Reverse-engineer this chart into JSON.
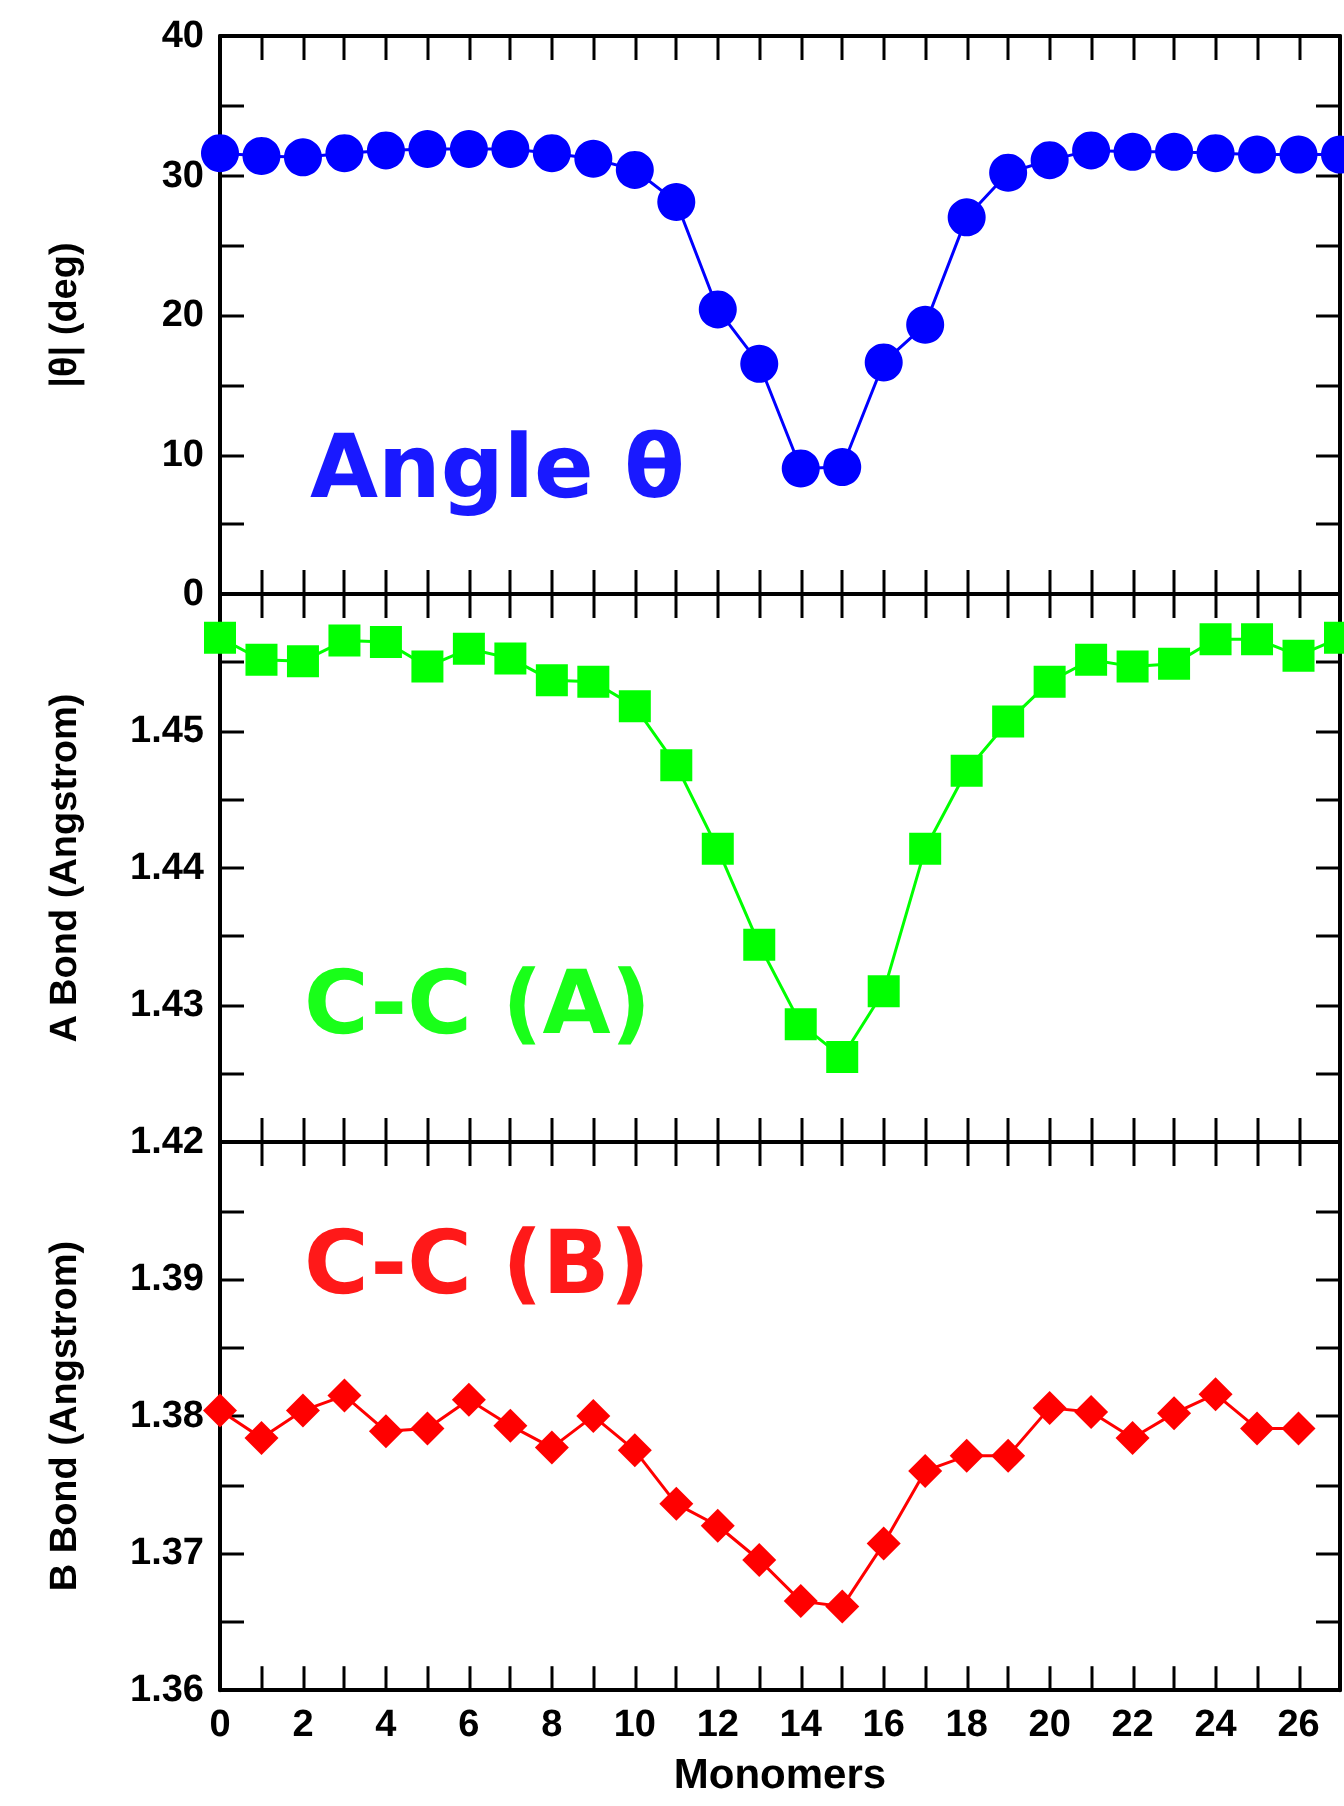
{
  "chart_data": [
    {
      "type": "line",
      "ylabel": "|θ| (deg)",
      "annotations": [
        "Angle θ"
      ],
      "x": [
        0,
        1,
        2,
        3,
        4,
        5,
        6,
        7,
        8,
        9,
        10,
        11,
        12,
        13,
        14,
        15,
        16,
        17,
        18,
        19,
        20,
        21,
        22,
        23,
        24,
        25,
        26,
        27
      ],
      "series": [
        {
          "color": "#0000ff",
          "values": [
            31.6,
            31.4,
            31.3,
            31.6,
            31.8,
            31.9,
            31.9,
            31.9,
            31.6,
            31.2,
            30.4,
            28.1,
            20.4,
            16.5,
            9.0,
            9.1,
            16.6,
            19.3,
            27.0,
            30.2,
            31.1,
            31.8,
            31.7,
            31.7,
            31.6,
            31.5,
            31.5,
            31.5
          ]
        }
      ],
      "marker": "circle",
      "xlim": [
        0,
        27
      ],
      "ylim": [
        0,
        40
      ],
      "tick_labels": "y",
      "xticks": [
        0,
        {
          "value": 1,
          "label": null
        },
        2,
        {
          "value": 3,
          "label": null
        },
        4,
        {
          "value": 5,
          "label": null
        },
        6,
        {
          "value": 7,
          "label": null
        },
        8,
        {
          "value": 9,
          "label": null
        },
        10,
        {
          "value": 11,
          "label": null
        },
        12,
        {
          "value": 13,
          "label": null
        },
        14,
        {
          "value": 15,
          "label": null
        },
        16,
        {
          "value": 17,
          "label": null
        },
        18,
        {
          "value": 19,
          "label": null
        },
        20,
        {
          "value": 21,
          "label": null
        },
        22,
        {
          "value": 23,
          "label": null
        },
        24,
        {
          "value": 25,
          "label": null
        },
        26
      ],
      "yticks": [
        0,
        {
          "value": 5,
          "label": null
        },
        10,
        {
          "value": 15,
          "label": null
        },
        20,
        {
          "value": 25,
          "label": null
        },
        30,
        {
          "value": 35,
          "label": null
        },
        40
      ]
    },
    {
      "type": "line",
      "ylabel": "A Bond (Angstrom)",
      "annotations": [
        "C-C (A)"
      ],
      "x": [
        0,
        1,
        2,
        3,
        4,
        5,
        6,
        7,
        8,
        9,
        10,
        11,
        12,
        13,
        14,
        15,
        16,
        17,
        18,
        19,
        20,
        21,
        22,
        23,
        24,
        25,
        26,
        27
      ],
      "series": [
        {
          "color": "#00ff00",
          "values": [
            1.4568,
            1.4552,
            1.4551,
            1.4566,
            1.4565,
            1.4547,
            1.456,
            1.4553,
            1.4537,
            1.4536,
            1.4518,
            1.4475,
            1.4414,
            1.4344,
            1.4286,
            1.4262,
            1.431,
            1.4414,
            1.4471,
            1.4507,
            1.4536,
            1.4552,
            1.4547,
            1.4549,
            1.4567,
            1.4567,
            1.4555,
            1.4568
          ]
        }
      ],
      "marker": "square",
      "xlim": [
        0,
        27
      ],
      "ylim": [
        1.42,
        1.46
      ],
      "tick_labels": "y",
      "xticks": [
        0,
        {
          "value": 1,
          "label": null
        },
        2,
        {
          "value": 3,
          "label": null
        },
        4,
        {
          "value": 5,
          "label": null
        },
        6,
        {
          "value": 7,
          "label": null
        },
        8,
        {
          "value": 9,
          "label": null
        },
        10,
        {
          "value": 11,
          "label": null
        },
        12,
        {
          "value": 13,
          "label": null
        },
        14,
        {
          "value": 15,
          "label": null
        },
        16,
        {
          "value": 17,
          "label": null
        },
        18,
        {
          "value": 19,
          "label": null
        },
        20,
        {
          "value": 21,
          "label": null
        },
        22,
        {
          "value": 23,
          "label": null
        },
        24,
        {
          "value": 25,
          "label": null
        },
        26
      ],
      "yticks": [
        1.42,
        {
          "value": 1.425,
          "label": null
        },
        1.43,
        {
          "value": 1.435,
          "label": null
        },
        1.44,
        {
          "value": 1.445,
          "label": null
        },
        1.45,
        {
          "value": 1.455,
          "label": null
        },
        {
          "value": 1.46,
          "label": null
        }
      ]
    },
    {
      "type": "line",
      "xlabel": "Monomers",
      "ylabel": "B Bond (Angstrom)",
      "annotations": [
        "C-C (B)"
      ],
      "x": [
        0,
        1,
        2,
        3,
        4,
        5,
        6,
        7,
        8,
        9,
        10,
        11,
        12,
        13,
        14,
        15,
        16,
        17,
        18,
        19,
        20,
        21,
        22,
        23,
        24,
        25,
        26
      ],
      "series": [
        {
          "color": "#ff0000",
          "values": [
            1.3804,
            1.3784,
            1.3804,
            1.3815,
            1.3789,
            1.3791,
            1.3812,
            1.3793,
            1.3777,
            1.38,
            1.3775,
            1.3736,
            1.372,
            1.3695,
            1.3665,
            1.3661,
            1.3707,
            1.376,
            1.3771,
            1.3771,
            1.3806,
            1.3803,
            1.3784,
            1.3802,
            1.3816,
            1.3791,
            1.3791
          ]
        }
      ],
      "marker": "diamond",
      "xlim": [
        0,
        27
      ],
      "ylim": [
        1.36,
        1.4
      ],
      "xticks": [
        0,
        {
          "value": 1,
          "label": null
        },
        2,
        {
          "value": 3,
          "label": null
        },
        4,
        {
          "value": 5,
          "label": null
        },
        6,
        {
          "value": 7,
          "label": null
        },
        8,
        {
          "value": 9,
          "label": null
        },
        10,
        {
          "value": 11,
          "label": null
        },
        12,
        {
          "value": 13,
          "label": null
        },
        14,
        {
          "value": 15,
          "label": null
        },
        16,
        {
          "value": 17,
          "label": null
        },
        18,
        {
          "value": 19,
          "label": null
        },
        20,
        {
          "value": 21,
          "label": null
        },
        22,
        {
          "value": 23,
          "label": null
        },
        24,
        {
          "value": 25,
          "label": null
        },
        26
      ],
      "yticks": [
        1.36,
        {
          "value": 1.365,
          "label": null
        },
        1.37,
        {
          "value": 1.375,
          "label": null
        },
        1.38,
        {
          "value": 1.385,
          "label": null
        },
        1.39,
        {
          "value": 1.395,
          "label": null
        },
        {
          "value": 1.4,
          "label": null
        }
      ]
    }
  ]
}
